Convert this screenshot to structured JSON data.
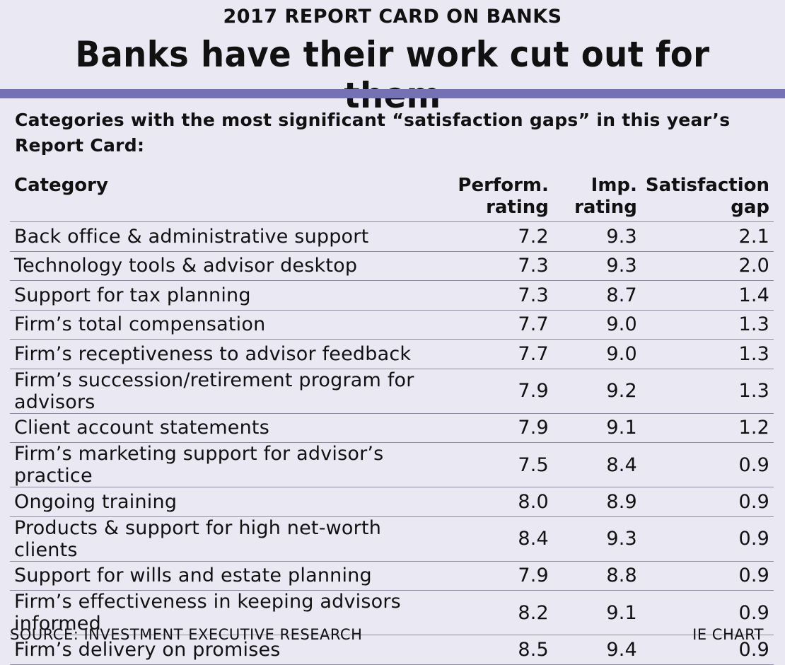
{
  "kicker": "2017 REPORT CARD ON BANKS",
  "title": "Banks have their work cut out for them",
  "subtitle": "Categories with the most significant “satisfaction gaps” in this year’s Report Card:",
  "chart_data": {
    "type": "table",
    "columns": [
      "Category",
      "Perform. rating",
      "Imp. rating",
      "Satisfaction gap"
    ],
    "rows": [
      [
        "Back office & administrative support",
        "7.2",
        "9.3",
        "2.1"
      ],
      [
        "Technology tools & advisor desktop",
        "7.3",
        "9.3",
        "2.0"
      ],
      [
        "Support for tax planning",
        "7.3",
        "8.7",
        "1.4"
      ],
      [
        "Firm’s total compensation",
        "7.7",
        "9.0",
        "1.3"
      ],
      [
        "Firm’s receptiveness to advisor feedback",
        "7.7",
        "9.0",
        "1.3"
      ],
      [
        "Firm’s succession/retirement program for advisors",
        "7.9",
        "9.2",
        "1.3"
      ],
      [
        "Client account statements",
        "7.9",
        "9.1",
        "1.2"
      ],
      [
        "Firm’s marketing support for advisor’s practice",
        "7.5",
        "8.4",
        "0.9"
      ],
      [
        "Ongoing training",
        "8.0",
        "8.9",
        "0.9"
      ],
      [
        "Products & support for high net-worth clients",
        "8.4",
        "9.3",
        "0.9"
      ],
      [
        "Support for wills and estate planning",
        "7.9",
        "8.8",
        "0.9"
      ],
      [
        "Firm’s effectiveness in keeping advisors informed",
        "8.2",
        "9.1",
        "0.9"
      ],
      [
        "Firm’s delivery on promises",
        "8.5",
        "9.4",
        "0.9"
      ]
    ]
  },
  "footer": {
    "source": "SOURCE: INVESTMENT EXECUTIVE RESEARCH",
    "credit": "IE CHART"
  },
  "colors": {
    "background": "#e9e8f3",
    "rule": "#7472b2",
    "text": "#111111"
  }
}
